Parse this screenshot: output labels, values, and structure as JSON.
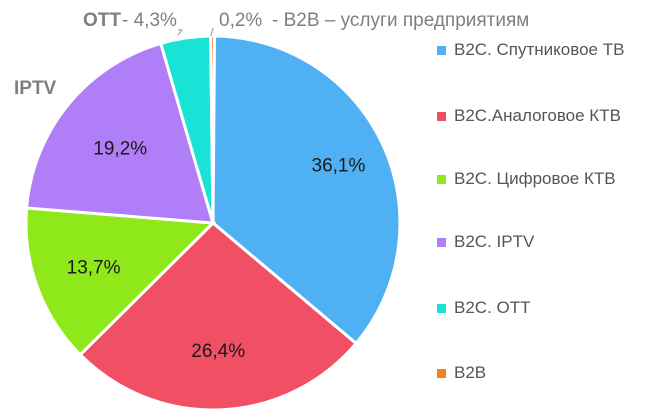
{
  "chart_data": {
    "type": "pie",
    "categories": [
      "B2C. Спутниковое ТВ",
      "B2C.Аналоговое КТВ",
      "B2C. Цифровое КТВ",
      "B2C. IPTV",
      "B2C. OTT",
      "B2B"
    ],
    "values": [
      36.1,
      26.4,
      13.7,
      19.2,
      4.3,
      0.2
    ],
    "value_labels": [
      "36,1%",
      "26,4%",
      "13,7%",
      "19,2%",
      "4,3%",
      "0,2%"
    ],
    "colors": [
      "#4fb1f4",
      "#f04f64",
      "#8ee81a",
      "#b07ef6",
      "#19e3d6",
      "#f5821f"
    ],
    "legend_position": "right"
  },
  "annotations": {
    "iptv": "IPTV",
    "ott_name": "OTT",
    "ott_value": "- 4,3%",
    "b2b_value": "0,2%",
    "b2b_text": "- B2B – услуги предприятиям"
  }
}
